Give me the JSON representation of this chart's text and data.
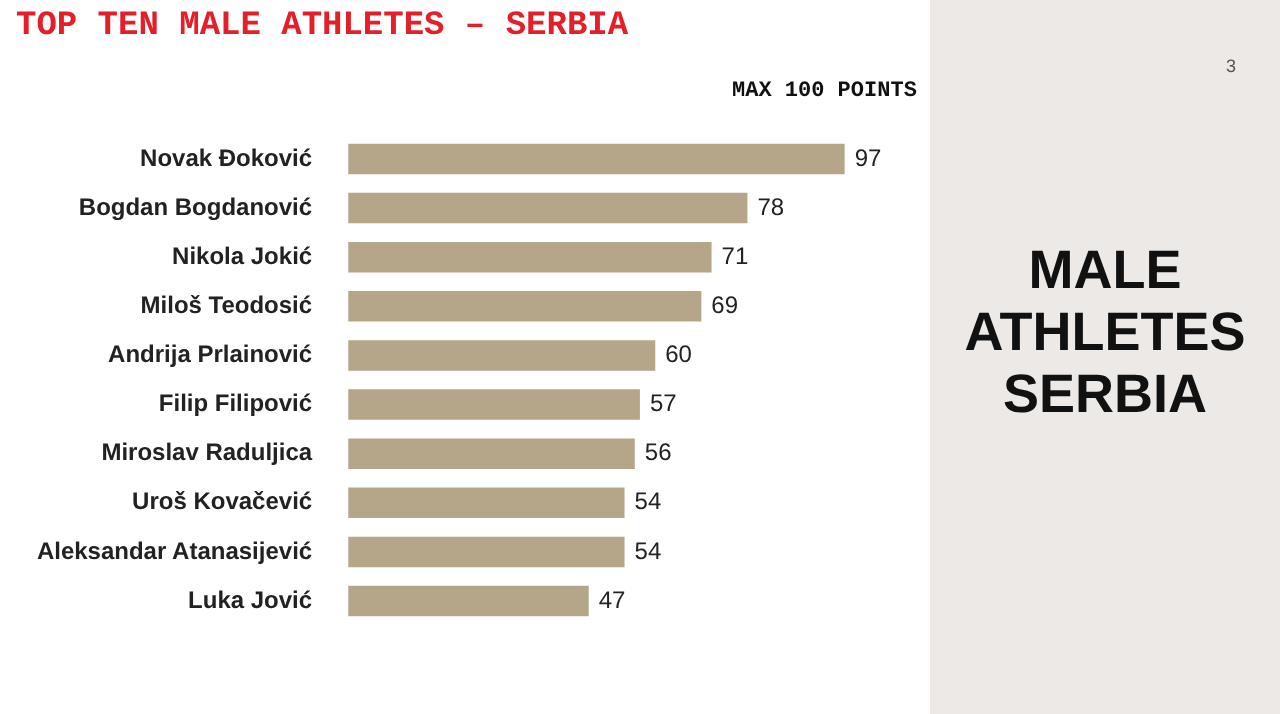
{
  "chart_data": {
    "type": "bar",
    "orientation": "horizontal",
    "title": "TOP TEN MALE ATHLETES – SERBIA",
    "categories": [
      "Novak Đoković",
      "Bogdan Bogdanović",
      "Nikola Jokić",
      "Miloš Teodosić",
      "Andrija Prlainović",
      "Filip Filipović",
      "Miroslav Raduljica",
      "Uroš Kovačević",
      "Aleksandar Atanasijević",
      "Luka Jović"
    ],
    "values": [
      97,
      78,
      71,
      69,
      60,
      57,
      56,
      54,
      54,
      47
    ],
    "color": "#b5a68a",
    "data_labels": true,
    "grid": false,
    "legend": false,
    "annotations": [
      "MAX 100 POINTS",
      "MALE ATHLETES SERBIA",
      "3"
    ]
  }
}
